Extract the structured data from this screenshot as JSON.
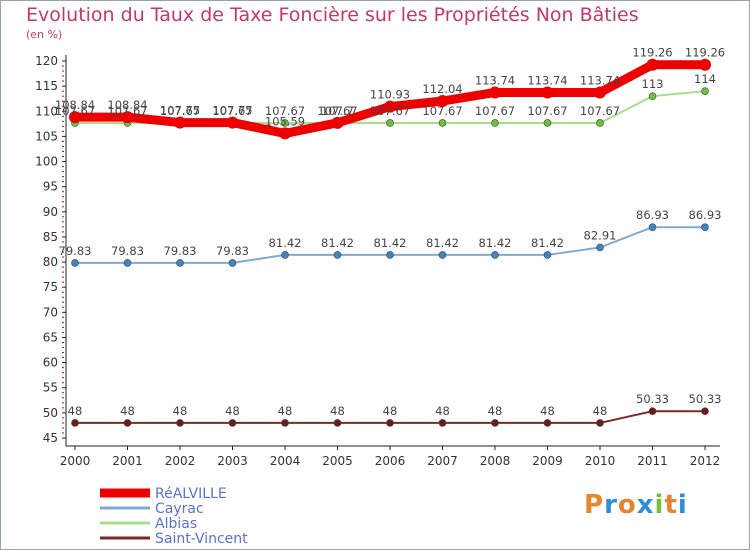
{
  "header": {
    "title": "Evolution du Taux de Taxe Foncière sur les Propriétés Non Bâties",
    "unit": "(en %)"
  },
  "logo": {
    "text": "Proxiti",
    "letter_colors": [
      "#e8842a",
      "#2e8fd6",
      "#e8842a",
      "#2e8fd6",
      "#7bbf3a",
      "#e8842a",
      "#2e8fd6"
    ]
  },
  "chart_data": {
    "type": "line",
    "title": "Evolution du Taux de Taxe Foncière sur les Propriétés Non Bâties",
    "ylabel": "(en %)",
    "xlabel": "",
    "x": [
      "2000",
      "2001",
      "2002",
      "2003",
      "2004",
      "2005",
      "2006",
      "2007",
      "2008",
      "2009",
      "2010",
      "2011",
      "2012"
    ],
    "ylim": [
      45,
      120
    ],
    "yticks": [
      45,
      50,
      55,
      60,
      65,
      70,
      75,
      80,
      85,
      90,
      95,
      100,
      105,
      110,
      115,
      120
    ],
    "grid": false,
    "legend_position": "bottom-left",
    "series": [
      {
        "name": "Saint-Vincent",
        "color": "#7a2a2a",
        "marker_color": "#6b1c1c",
        "values": [
          48,
          48,
          48,
          48,
          48,
          48,
          48,
          48,
          48,
          48,
          48,
          50.33,
          50.33
        ],
        "labels": [
          "48",
          "48",
          "48",
          "48",
          "48",
          "48",
          "48",
          "48",
          "48",
          "48",
          "48",
          "50.33",
          "50.33"
        ]
      },
      {
        "name": "Cayrac",
        "color": "#7fa9d3",
        "marker_color": "#3d86c6",
        "values": [
          79.83,
          79.83,
          79.83,
          79.83,
          81.42,
          81.42,
          81.42,
          81.42,
          81.42,
          81.42,
          82.91,
          86.93,
          86.93
        ],
        "labels": [
          "79.83",
          "79.83",
          "79.83",
          "79.83",
          "81.42",
          "81.42",
          "81.42",
          "81.42",
          "81.42",
          "81.42",
          "82.91",
          "86.93",
          "86.93"
        ]
      },
      {
        "name": "Albias",
        "color": "#a9dd86",
        "marker_color": "#6cc13a",
        "values": [
          107.67,
          107.67,
          107.67,
          107.67,
          107.67,
          107.67,
          107.67,
          107.67,
          107.67,
          107.67,
          107.67,
          113,
          114
        ],
        "labels": [
          "107.67",
          "107.67",
          "107.67",
          "107.67",
          "107.67",
          "107.67",
          "107.67",
          "107.67",
          "107.67",
          "107.67",
          "107.67",
          "113",
          "114"
        ]
      },
      {
        "name": "RéALVILLE",
        "color": "#ee0000",
        "marker_color": "#ee0000",
        "values": [
          108.84,
          108.84,
          107.75,
          107.75,
          105.59,
          107.7,
          110.93,
          112.04,
          113.74,
          113.74,
          113.74,
          119.26,
          119.26
        ],
        "labels": [
          "108.84",
          "108.84",
          "107.75",
          "107.75",
          "105.59",
          "107.7",
          "110.93",
          "112.04",
          "113.74",
          "113.74",
          "113.74",
          "119.26",
          "119.26"
        ]
      }
    ],
    "legend": [
      "RéALVILLE",
      "Cayrac",
      "Albias",
      "Saint-Vincent"
    ]
  }
}
